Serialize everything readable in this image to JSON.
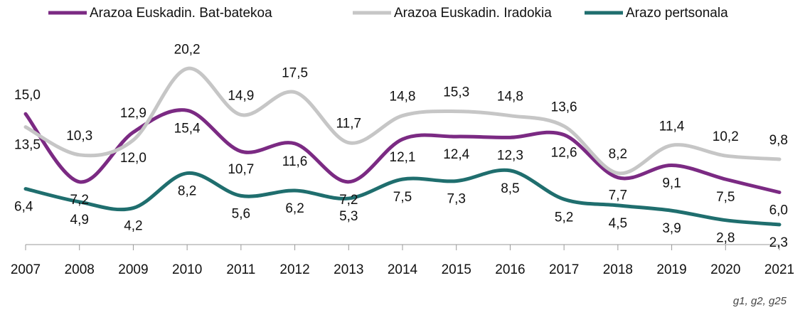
{
  "chart_data": {
    "type": "line",
    "categories": [
      "2007",
      "2008",
      "2009",
      "2010",
      "2011",
      "2012",
      "2013",
      "2014",
      "2015",
      "2016",
      "2017",
      "2018",
      "2019",
      "2020",
      "2021"
    ],
    "series": [
      {
        "name": "Arazoa Euskadin. Bat-batekoa",
        "color": "#7b2a83",
        "values": [
          15.0,
          7.2,
          12.9,
          15.4,
          10.7,
          11.6,
          7.2,
          12.1,
          12.4,
          12.3,
          12.6,
          7.7,
          9.1,
          7.5,
          6.0
        ],
        "value_labels": [
          "15,0",
          "7,2",
          "12,9",
          "15,4",
          "10,7",
          "11,6",
          "7,2",
          "12,1",
          "12,4",
          "12,3",
          "12,6",
          "7,7",
          "9,1",
          "7,5",
          "6,0"
        ]
      },
      {
        "name": "Arazoa Euskadin. Iradokia",
        "color": "#c6c6c6",
        "values": [
          13.5,
          10.3,
          12.0,
          20.2,
          14.9,
          17.5,
          11.7,
          14.8,
          15.3,
          14.8,
          13.6,
          8.2,
          11.4,
          10.2,
          9.8
        ],
        "value_labels": [
          "13,5",
          "10,3",
          "12,0",
          "20,2",
          "14,9",
          "17,5",
          "11,7",
          "14,8",
          "15,3",
          "14,8",
          "13,6",
          "8,2",
          "11,4",
          "10,2",
          "9,8"
        ]
      },
      {
        "name": "Arazo pertsonala",
        "color": "#1f6e6e",
        "values": [
          6.4,
          4.9,
          4.2,
          8.2,
          5.6,
          6.2,
          5.3,
          7.5,
          7.3,
          8.5,
          5.2,
          4.5,
          3.9,
          2.8,
          2.3
        ],
        "value_labels": [
          "6,4",
          "4,9",
          "4,2",
          "8,2",
          "5,6",
          "6,2",
          "5,3",
          "7,5",
          "7,3",
          "8,5",
          "5,2",
          "4,5",
          "3,9",
          "2,8",
          "2,3"
        ]
      }
    ],
    "ylim": [
      0,
      24
    ],
    "source": "g1, g2, g25"
  }
}
